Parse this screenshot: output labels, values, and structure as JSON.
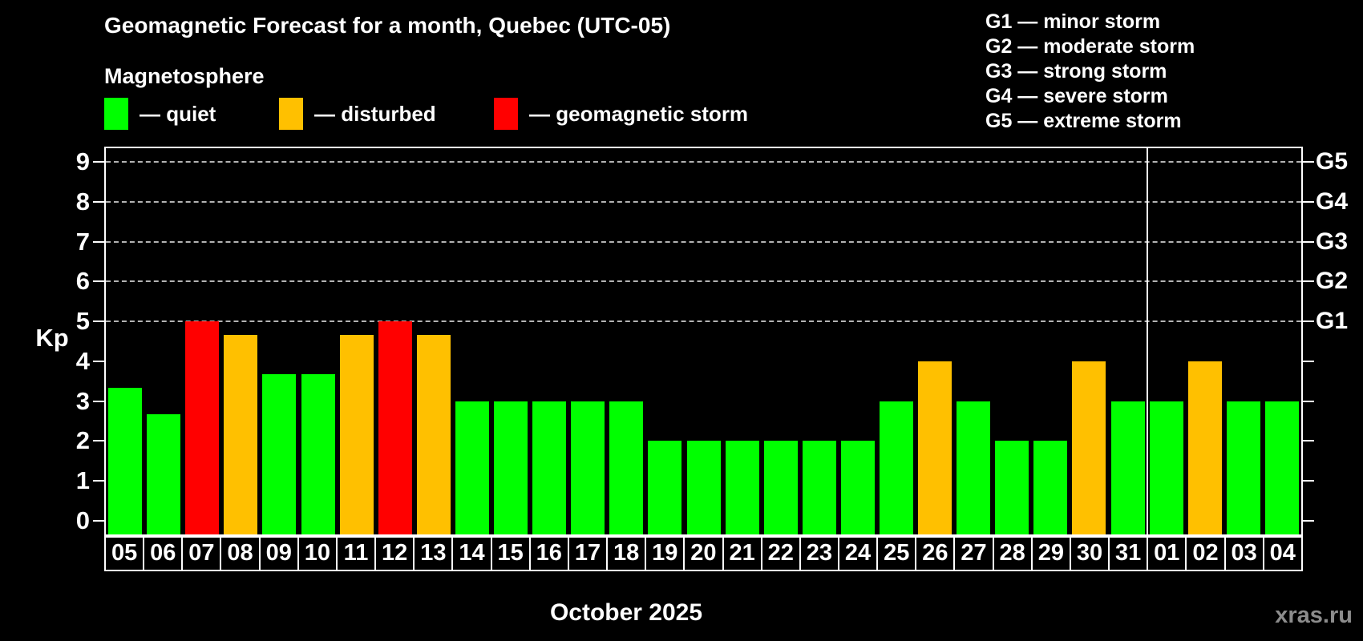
{
  "header": {
    "title": "Geomagnetic Forecast for a month, Quebec (UTC-05)",
    "subtitle": "Magnetosphere"
  },
  "legend": {
    "items": [
      {
        "key": "quiet",
        "label": "— quiet",
        "color": "#00ff00"
      },
      {
        "key": "disturbed",
        "label": "— disturbed",
        "color": "#ffc000"
      },
      {
        "key": "storm",
        "label": "— geomagnetic storm",
        "color": "#ff0000"
      }
    ]
  },
  "g_scale_legend": {
    "lines": [
      "G1 — minor storm",
      "G2 — moderate storm",
      "G3 — strong storm",
      "G4 — severe storm",
      "G5 — extreme storm"
    ]
  },
  "chart_data": {
    "type": "bar",
    "title": "Geomagnetic Forecast for a month, Quebec (UTC-05)",
    "ylabel": "Kp",
    "xlabel": "October 2025",
    "ylim": [
      0,
      9
    ],
    "yticks": [
      0,
      1,
      2,
      3,
      4,
      5,
      6,
      7,
      8,
      9
    ],
    "gridlines_at_kp": [
      5,
      6,
      7,
      8,
      9
    ],
    "grid": "dashed horizontal lines at storm levels G1-G5 only",
    "legend_position": "top-left above plot",
    "right_axis": [
      {
        "kp": 5,
        "label": "G1"
      },
      {
        "kp": 6,
        "label": "G2"
      },
      {
        "kp": 7,
        "label": "G3"
      },
      {
        "kp": 8,
        "label": "G4"
      },
      {
        "kp": 9,
        "label": "G5"
      }
    ],
    "categories": [
      "05",
      "06",
      "07",
      "08",
      "09",
      "10",
      "11",
      "12",
      "13",
      "14",
      "15",
      "16",
      "17",
      "18",
      "19",
      "20",
      "21",
      "22",
      "23",
      "24",
      "25",
      "26",
      "27",
      "28",
      "29",
      "30",
      "31",
      "01",
      "02",
      "03",
      "04"
    ],
    "values": [
      3.33,
      2.67,
      5,
      4.67,
      3.67,
      3.67,
      4.67,
      5,
      4.67,
      3,
      3,
      3,
      3,
      3,
      2,
      2,
      2,
      2,
      2,
      2,
      3,
      4,
      3,
      2,
      2,
      4,
      3,
      3,
      4,
      3,
      3
    ],
    "status": [
      "quiet",
      "quiet",
      "storm",
      "disturbed",
      "quiet",
      "quiet",
      "disturbed",
      "storm",
      "disturbed",
      "quiet",
      "quiet",
      "quiet",
      "quiet",
      "quiet",
      "quiet",
      "quiet",
      "quiet",
      "quiet",
      "quiet",
      "quiet",
      "quiet",
      "disturbed",
      "quiet",
      "quiet",
      "quiet",
      "disturbed",
      "quiet",
      "quiet",
      "disturbed",
      "quiet",
      "quiet"
    ],
    "month_separator_after_category": "31",
    "colors": {
      "quiet": "#00ff00",
      "disturbed": "#ffc000",
      "storm": "#ff0000"
    }
  },
  "footer": {
    "month_label": "October 2025",
    "watermark": "xras.ru"
  }
}
